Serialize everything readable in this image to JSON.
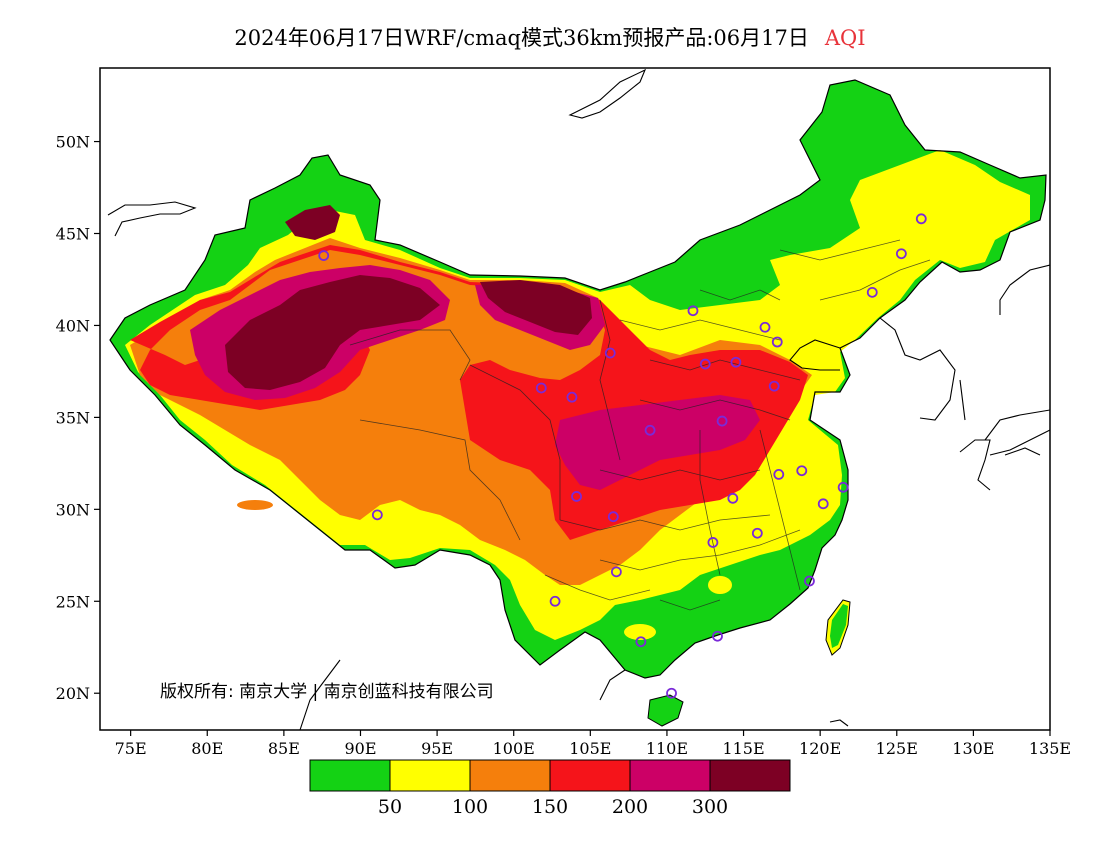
{
  "header": {
    "title": "2024年06月17日WRF/cmaq模式36km预报产品:06月17日",
    "product": "AQI"
  },
  "map": {
    "lon_range": [
      73,
      135
    ],
    "lat_range": [
      18,
      54
    ],
    "x_ticks": [
      "75E",
      "80E",
      "85E",
      "90E",
      "95E",
      "100E",
      "105E",
      "110E",
      "115E",
      "120E",
      "125E",
      "130E",
      "135E"
    ],
    "y_ticks": [
      "20N",
      "25N",
      "30N",
      "35N",
      "40N",
      "45N",
      "50N"
    ],
    "copyright": "版权所有: 南京大学 | 南京创蓝科技有限公司",
    "station_color": "#7a2ad8",
    "stations": [
      {
        "lon": 87.6,
        "lat": 43.8
      },
      {
        "lon": 91.1,
        "lat": 29.7
      },
      {
        "lon": 101.8,
        "lat": 36.6
      },
      {
        "lon": 103.8,
        "lat": 36.1
      },
      {
        "lon": 106.3,
        "lat": 38.5
      },
      {
        "lon": 111.7,
        "lat": 40.8
      },
      {
        "lon": 112.5,
        "lat": 37.9
      },
      {
        "lon": 114.5,
        "lat": 38.0
      },
      {
        "lon": 116.4,
        "lat": 39.9
      },
      {
        "lon": 117.2,
        "lat": 39.1
      },
      {
        "lon": 117.0,
        "lat": 36.7
      },
      {
        "lon": 113.6,
        "lat": 34.8
      },
      {
        "lon": 108.9,
        "lat": 34.3
      },
      {
        "lon": 104.1,
        "lat": 30.7
      },
      {
        "lon": 106.5,
        "lat": 29.6
      },
      {
        "lon": 114.3,
        "lat": 30.6
      },
      {
        "lon": 117.3,
        "lat": 31.9
      },
      {
        "lon": 118.8,
        "lat": 32.1
      },
      {
        "lon": 120.2,
        "lat": 30.3
      },
      {
        "lon": 121.5,
        "lat": 31.2
      },
      {
        "lon": 115.9,
        "lat": 28.7
      },
      {
        "lon": 113.0,
        "lat": 28.2
      },
      {
        "lon": 106.7,
        "lat": 26.6
      },
      {
        "lon": 102.7,
        "lat": 25.0
      },
      {
        "lon": 108.3,
        "lat": 22.8
      },
      {
        "lon": 113.3,
        "lat": 23.1
      },
      {
        "lon": 119.3,
        "lat": 26.1
      },
      {
        "lon": 110.3,
        "lat": 20.0
      },
      {
        "lon": 123.4,
        "lat": 41.8
      },
      {
        "lon": 125.3,
        "lat": 43.9
      },
      {
        "lon": 126.6,
        "lat": 45.8
      }
    ]
  },
  "legend": {
    "colors": [
      "#14d214",
      "#ffff00",
      "#f57f0c",
      "#f5141a",
      "#cc0066",
      "#7d0024"
    ],
    "labels": [
      "50",
      "100",
      "150",
      "200",
      "300"
    ]
  }
}
